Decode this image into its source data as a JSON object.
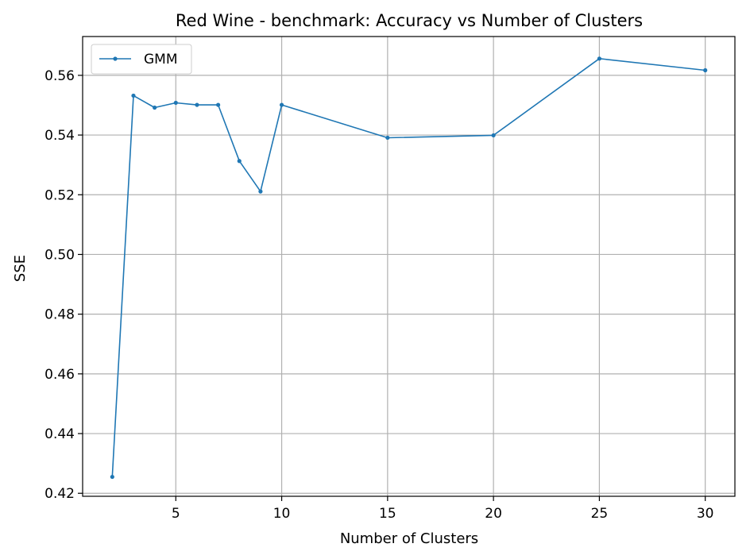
{
  "chart_data": {
    "type": "line",
    "title": "Red Wine - benchmark: Accuracy vs Number of Clusters",
    "xlabel": "Number of Clusters",
    "ylabel": "SSE",
    "xlim": [
      0.6,
      31.4
    ],
    "ylim": [
      0.419,
      0.573
    ],
    "xticks": [
      5,
      10,
      15,
      20,
      25,
      30
    ],
    "yticks": [
      0.42,
      0.44,
      0.46,
      0.48,
      0.5,
      0.52,
      0.54,
      0.56
    ],
    "ytick_labels": [
      "0.42",
      "0.44",
      "0.46",
      "0.48",
      "0.50",
      "0.52",
      "0.54",
      "0.56"
    ],
    "grid": true,
    "legend_position": "top-left",
    "series": [
      {
        "name": "GMM",
        "color": "#1f77b4",
        "x": [
          2,
          3,
          4,
          5,
          6,
          7,
          8,
          9,
          10,
          15,
          20,
          25,
          30
        ],
        "y": [
          0.4255,
          0.5532,
          0.5492,
          0.5508,
          0.5501,
          0.5501,
          0.5313,
          0.5211,
          0.5501,
          0.5391,
          0.5399,
          0.5656,
          0.5617
        ]
      }
    ]
  }
}
